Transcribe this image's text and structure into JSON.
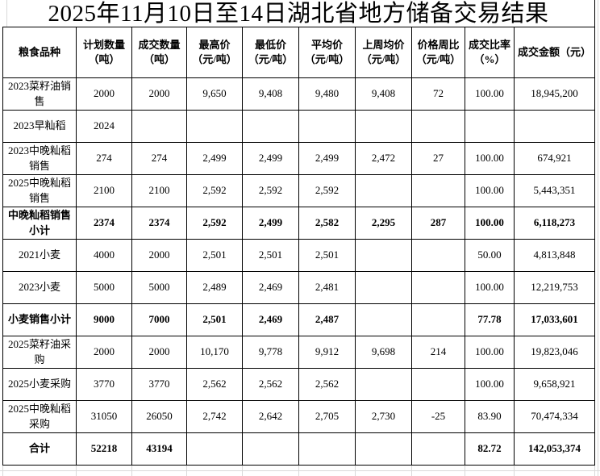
{
  "title": "2025年11月10日至14日湖北省地方储备交易结果",
  "table": {
    "columns": [
      "粮食品种",
      "计划数量\n（吨）",
      "成交数量\n（吨）",
      "最高价\n（元/吨）",
      "最低价\n（元/吨）",
      "平均价\n（元/吨）",
      "上周均价\n（元/吨）",
      "价格周比\n（元/吨）",
      "成交比率\n（%）",
      "成交金额（元）"
    ],
    "rows": [
      {
        "bold": false,
        "cells": [
          "2023菜籽油销售",
          "2000",
          "2000",
          "9,650",
          "9,408",
          "9,480",
          "9,408",
          "72",
          "100.00",
          "18,945,200"
        ]
      },
      {
        "bold": false,
        "cells": [
          "2023早籼稻",
          "2024",
          "",
          "",
          "",
          "",
          "",
          "",
          "",
          ""
        ]
      },
      {
        "bold": false,
        "cells": [
          "2023中晚籼稻销售",
          "274",
          "274",
          "2,499",
          "2,499",
          "2,499",
          "2,472",
          "27",
          "100.00",
          "674,921"
        ]
      },
      {
        "bold": false,
        "cells": [
          "2025中晚籼稻销售",
          "2100",
          "2100",
          "2,592",
          "2,592",
          "2,592",
          "",
          "",
          "100.00",
          "5,443,351"
        ]
      },
      {
        "bold": true,
        "cells": [
          "中晚籼稻销售小计",
          "2374",
          "2374",
          "2,592",
          "2,499",
          "2,582",
          "2,295",
          "287",
          "100.00",
          "6,118,273"
        ]
      },
      {
        "bold": false,
        "cells": [
          "2021小麦",
          "4000",
          "2000",
          "2,501",
          "2,501",
          "2,501",
          "",
          "",
          "50.00",
          "4,813,848"
        ]
      },
      {
        "bold": false,
        "cells": [
          "2023小麦",
          "5000",
          "5000",
          "2,489",
          "2,469",
          "2,481",
          "",
          "",
          "100.00",
          "12,219,753"
        ]
      },
      {
        "bold": true,
        "cells": [
          "小麦销售小计",
          "9000",
          "7000",
          "2,501",
          "2,469",
          "2,487",
          "",
          "",
          "77.78",
          "17,033,601"
        ]
      },
      {
        "bold": false,
        "cells": [
          "2025菜籽油采购",
          "2000",
          "2000",
          "10,170",
          "9,778",
          "9,912",
          "9,698",
          "214",
          "100.00",
          "19,823,046"
        ]
      },
      {
        "bold": false,
        "cells": [
          "2025小麦采购",
          "3770",
          "3770",
          "2,562",
          "2,562",
          "2,562",
          "",
          "",
          "100.00",
          "9,658,921"
        ]
      },
      {
        "bold": false,
        "cells": [
          "2025中晚籼稻采购",
          "31050",
          "26050",
          "2,742",
          "2,642",
          "2,705",
          "2,730",
          "-25",
          "83.90",
          "70,474,334"
        ]
      },
      {
        "bold": true,
        "cells": [
          "合计",
          "52218",
          "43194",
          "",
          "",
          "",
          "",
          "",
          "82.72",
          "142,053,374"
        ]
      }
    ]
  },
  "colors": {
    "border": "#000000",
    "gridline": "#d9d9d9",
    "text": "#000000",
    "background": "#ffffff"
  }
}
